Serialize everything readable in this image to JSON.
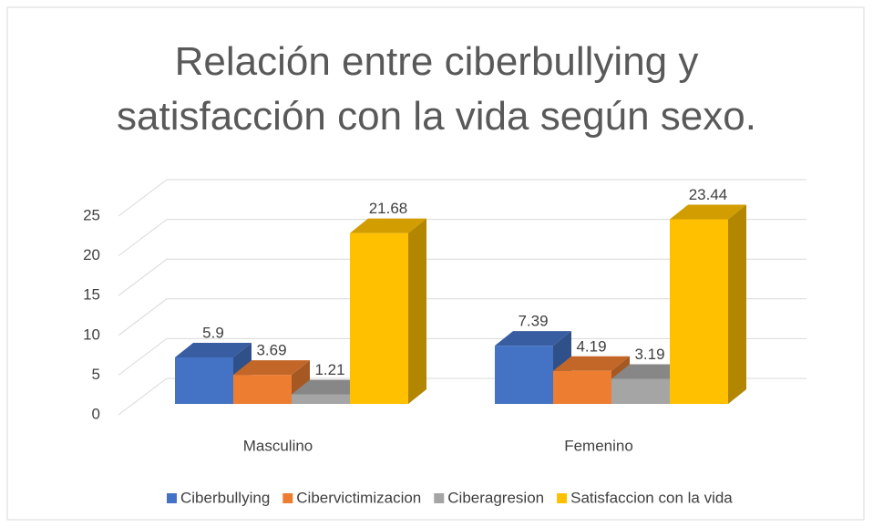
{
  "chart_data": {
    "type": "bar3d",
    "title": "Relación entre ciberbullying y satisfacción con la vida según sexo.",
    "categories": [
      "Masculino",
      "Femenino"
    ],
    "series": [
      {
        "name": "Ciberbullying",
        "color": "#4472c4",
        "values": [
          5.9,
          7.39
        ]
      },
      {
        "name": "Cibervictimizacion",
        "color": "#ed7d31",
        "values": [
          3.69,
          4.19
        ]
      },
      {
        "name": "Ciberagresion",
        "color": "#a5a5a5",
        "values": [
          1.21,
          3.19
        ]
      },
      {
        "name": "Satisfaccion con la vida",
        "color": "#ffc000",
        "values": [
          21.68,
          23.44
        ]
      }
    ],
    "ylim": [
      0,
      25
    ],
    "yticks": [
      0,
      5,
      10,
      15,
      20,
      25
    ],
    "grid": true,
    "legend": "bottom"
  }
}
